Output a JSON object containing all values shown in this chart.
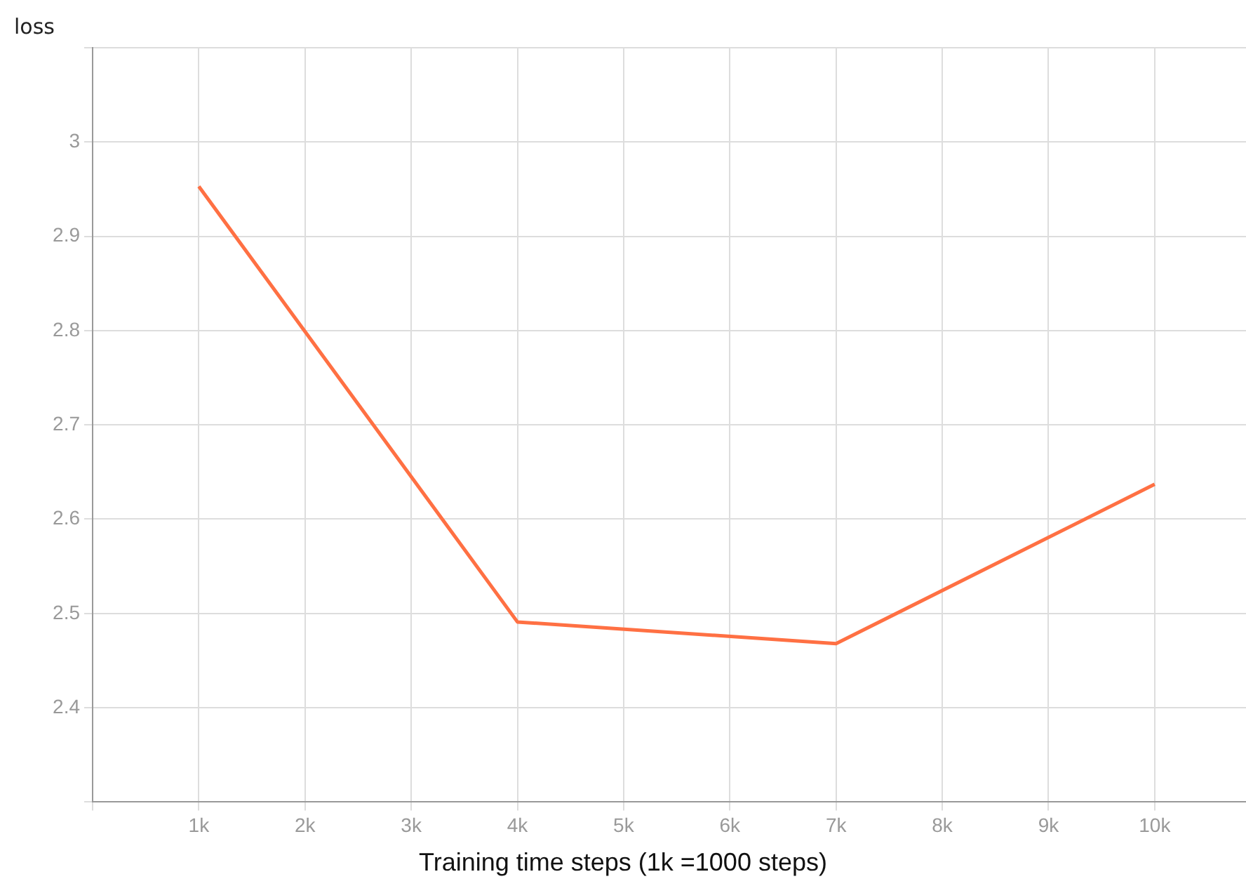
{
  "chart_data": {
    "type": "line",
    "ylabel": "loss",
    "xlabel": "Training time steps (1k =1000 steps)",
    "x": [
      1000,
      4000,
      7000,
      10000
    ],
    "series": [
      {
        "color": "#ff7043",
        "values": [
          2.953,
          2.491,
          2.468,
          2.637
        ]
      }
    ],
    "xlim": [
      0,
      10860
    ],
    "xticks": [
      {
        "value": 0,
        "label": null
      },
      {
        "value": 1000,
        "label": "1k"
      },
      {
        "value": 2000,
        "label": "2k"
      },
      {
        "value": 3000,
        "label": "3k"
      },
      {
        "value": 4000,
        "label": "4k"
      },
      {
        "value": 5000,
        "label": "5k"
      },
      {
        "value": 6000,
        "label": "6k"
      },
      {
        "value": 7000,
        "label": "7k"
      },
      {
        "value": 8000,
        "label": "8k"
      },
      {
        "value": 9000,
        "label": "9k"
      },
      {
        "value": 10000,
        "label": "10k"
      }
    ],
    "ylim": [
      2.3,
      3.1
    ],
    "yticks": [
      {
        "value": 2.3,
        "label": null
      },
      2.4,
      2.5,
      2.6,
      2.7,
      2.8,
      2.9,
      3,
      {
        "value": 3.1,
        "label": null
      }
    ],
    "grid": true,
    "legend": false,
    "marker": "none",
    "line_style": "solid"
  }
}
